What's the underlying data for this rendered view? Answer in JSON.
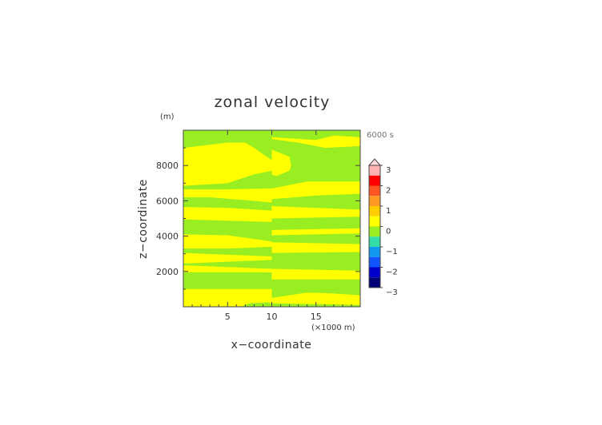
{
  "chart_data": {
    "type": "heatmap",
    "title": "zonal velocity",
    "xlabel": "x−coordinate",
    "ylabel": "z−coordinate",
    "x_unit": "(×1000 m)",
    "y_unit": "(m)",
    "time_label": "6000 s",
    "xlim": [
      0,
      20
    ],
    "ylim": [
      0,
      10000
    ],
    "x_ticks": [
      5,
      10,
      15
    ],
    "x_tick_labels": [
      "5",
      "10",
      "15"
    ],
    "y_ticks": [
      2000,
      4000,
      6000,
      8000
    ],
    "y_tick_labels": [
      "2000",
      "4000",
      "6000",
      "8000"
    ],
    "fill_colors": {
      "value_below_0": "#99ee22",
      "value_0_to_0.5": "#ffff00"
    },
    "regions": [
      {
        "value_range": "0 to 0.5",
        "polygon": [
          [
            0,
            0
          ],
          [
            6.5,
            0
          ],
          [
            7.5,
            200
          ],
          [
            9.5,
            250
          ],
          [
            10,
            200
          ],
          [
            20,
            100
          ],
          [
            20,
            650
          ],
          [
            17,
            750
          ],
          [
            14,
            800
          ],
          [
            10,
            500
          ],
          [
            10,
            1000
          ],
          [
            0,
            1000
          ]
        ]
      },
      {
        "value_range": "0 to 0.5",
        "polygon": [
          [
            0,
            1950
          ],
          [
            10,
            1950
          ],
          [
            10,
            1550
          ],
          [
            20,
            1550
          ],
          [
            20,
            2050
          ],
          [
            10,
            2150
          ],
          [
            0,
            2350
          ]
        ]
      },
      {
        "value_range": "0 to 0.5",
        "polygon": [
          [
            0,
            2450
          ],
          [
            10,
            2650
          ],
          [
            10,
            2850
          ],
          [
            0,
            3050
          ]
        ]
      },
      {
        "value_range": "0 to 0.5",
        "polygon": [
          [
            10,
            3050
          ],
          [
            20,
            3100
          ],
          [
            20,
            3550
          ],
          [
            10,
            3650
          ]
        ]
      },
      {
        "value_range": "0 to 0.5",
        "polygon": [
          [
            0,
            3300
          ],
          [
            5,
            3300
          ],
          [
            10,
            3400
          ],
          [
            10,
            3700
          ],
          [
            5,
            4050
          ],
          [
            0,
            4100
          ]
        ]
      },
      {
        "value_range": "0 to 0.5",
        "polygon": [
          [
            10,
            4050
          ],
          [
            20,
            4150
          ],
          [
            20,
            4450
          ],
          [
            10,
            4350
          ]
        ]
      },
      {
        "value_range": "0 to 0.5",
        "polygon": [
          [
            0,
            4950
          ],
          [
            10,
            4800
          ],
          [
            10,
            5450
          ],
          [
            5,
            5600
          ],
          [
            0,
            5650
          ]
        ]
      },
      {
        "value_range": "0 to 0.5",
        "polygon": [
          [
            10,
            5000
          ],
          [
            20,
            5100
          ],
          [
            20,
            5500
          ],
          [
            10,
            5700
          ]
        ]
      },
      {
        "value_range": "0 to 0.5",
        "polygon": [
          [
            0,
            6200
          ],
          [
            3,
            6200
          ],
          [
            8,
            6000
          ],
          [
            10,
            5900
          ],
          [
            10,
            6700
          ],
          [
            5,
            6650
          ],
          [
            0,
            6650
          ]
        ]
      },
      {
        "value_range": "0 to 0.5",
        "polygon": [
          [
            10,
            6100
          ],
          [
            15,
            6300
          ],
          [
            20,
            6400
          ],
          [
            20,
            7100
          ],
          [
            14,
            7100
          ],
          [
            11,
            6800
          ],
          [
            10,
            6700
          ]
        ]
      },
      {
        "value_range": "0 to 0.5",
        "polygon": [
          [
            0,
            6850
          ],
          [
            5,
            7000
          ],
          [
            8,
            7500
          ],
          [
            10,
            7700
          ],
          [
            10,
            8300
          ],
          [
            8,
            9000
          ],
          [
            7,
            9300
          ],
          [
            5,
            9300
          ],
          [
            0,
            9000
          ]
        ]
      },
      {
        "value_range": "0 to 0.5",
        "polygon": [
          [
            10,
            9500
          ],
          [
            13,
            9300
          ],
          [
            16,
            9000
          ],
          [
            20,
            9100
          ],
          [
            20,
            9600
          ],
          [
            17,
            9700
          ],
          [
            15,
            9450
          ],
          [
            10,
            9600
          ]
        ]
      },
      {
        "value_range": "0 to 0.5",
        "polygon": [
          [
            10,
            7500
          ],
          [
            10.5,
            7400
          ],
          [
            12,
            7700
          ],
          [
            12.2,
            8000
          ],
          [
            12,
            8500
          ],
          [
            11,
            8700
          ],
          [
            10,
            8900
          ]
        ]
      }
    ],
    "colorbar": {
      "ticks": [
        3,
        2,
        1,
        0,
        -1,
        -2,
        -3
      ],
      "tick_labels": [
        "3",
        "2",
        "1",
        "0",
        "−1",
        "−2",
        "−3"
      ],
      "bins": [
        {
          "range": "2.5 to 3",
          "color": "#ffb3b3"
        },
        {
          "range": "2 to 2.5",
          "color": "#ff0000"
        },
        {
          "range": "1.5 to 2",
          "color": "#ff5522"
        },
        {
          "range": "1 to 1.5",
          "color": "#ff9922"
        },
        {
          "range": "0.5 to 1",
          "color": "#ffcc00"
        },
        {
          "range": "0 to 0.5",
          "color": "#ffff00"
        },
        {
          "range": "-0.5 to 0",
          "color": "#99ee22"
        },
        {
          "range": "-1 to -0.5",
          "color": "#33ddaa"
        },
        {
          "range": "-1.5 to -1",
          "color": "#1199ee"
        },
        {
          "range": "-2 to -1.5",
          "color": "#1155ff"
        },
        {
          "range": "-2.5 to -2",
          "color": "#0000cc"
        },
        {
          "range": "-3 to -2.5",
          "color": "#000077"
        }
      ],
      "over_color": "#ffdddd"
    }
  }
}
